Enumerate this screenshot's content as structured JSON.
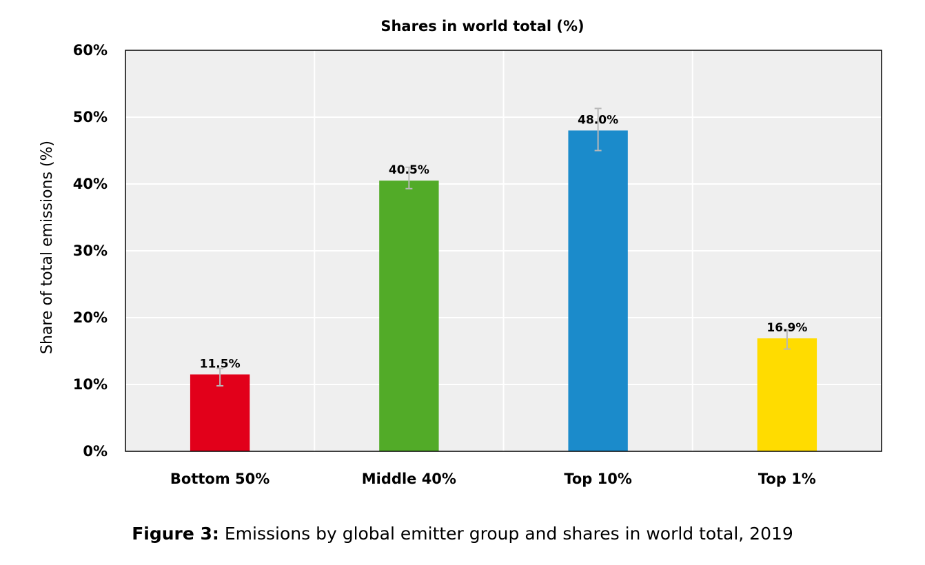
{
  "chart_data": {
    "type": "bar",
    "title": "Shares in world total (%)",
    "xlabel": "",
    "ylabel": "Share of total emissions (%)",
    "categories": [
      "Bottom 50%",
      "Middle 40%",
      "Top 10%",
      "Top 1%"
    ],
    "values": [
      11.5,
      40.5,
      48.0,
      16.9
    ],
    "data_labels": [
      "11.5%",
      "40.5%",
      "48.0%",
      "16.9%"
    ],
    "error_bars": [
      [
        9.8,
        12.4
      ],
      [
        39.3,
        42.5
      ],
      [
        45.0,
        51.3
      ],
      [
        15.3,
        18.2
      ]
    ],
    "colors": [
      "#e2001a",
      "#52ab28",
      "#1b8bcb",
      "#ffdc00"
    ],
    "ylim": [
      0,
      60
    ],
    "yticks": [
      0,
      10,
      20,
      30,
      40,
      50,
      60
    ],
    "ytick_labels": [
      "0%",
      "10%",
      "20%",
      "30%",
      "40%",
      "50%",
      "60%"
    ],
    "grid": true,
    "plot_background": "#efefef",
    "error_bar_color": "#b8b8b8"
  },
  "caption": {
    "lead": "Figure 3:",
    "text": " Emissions by global emitter group and shares in world total, 2019"
  }
}
